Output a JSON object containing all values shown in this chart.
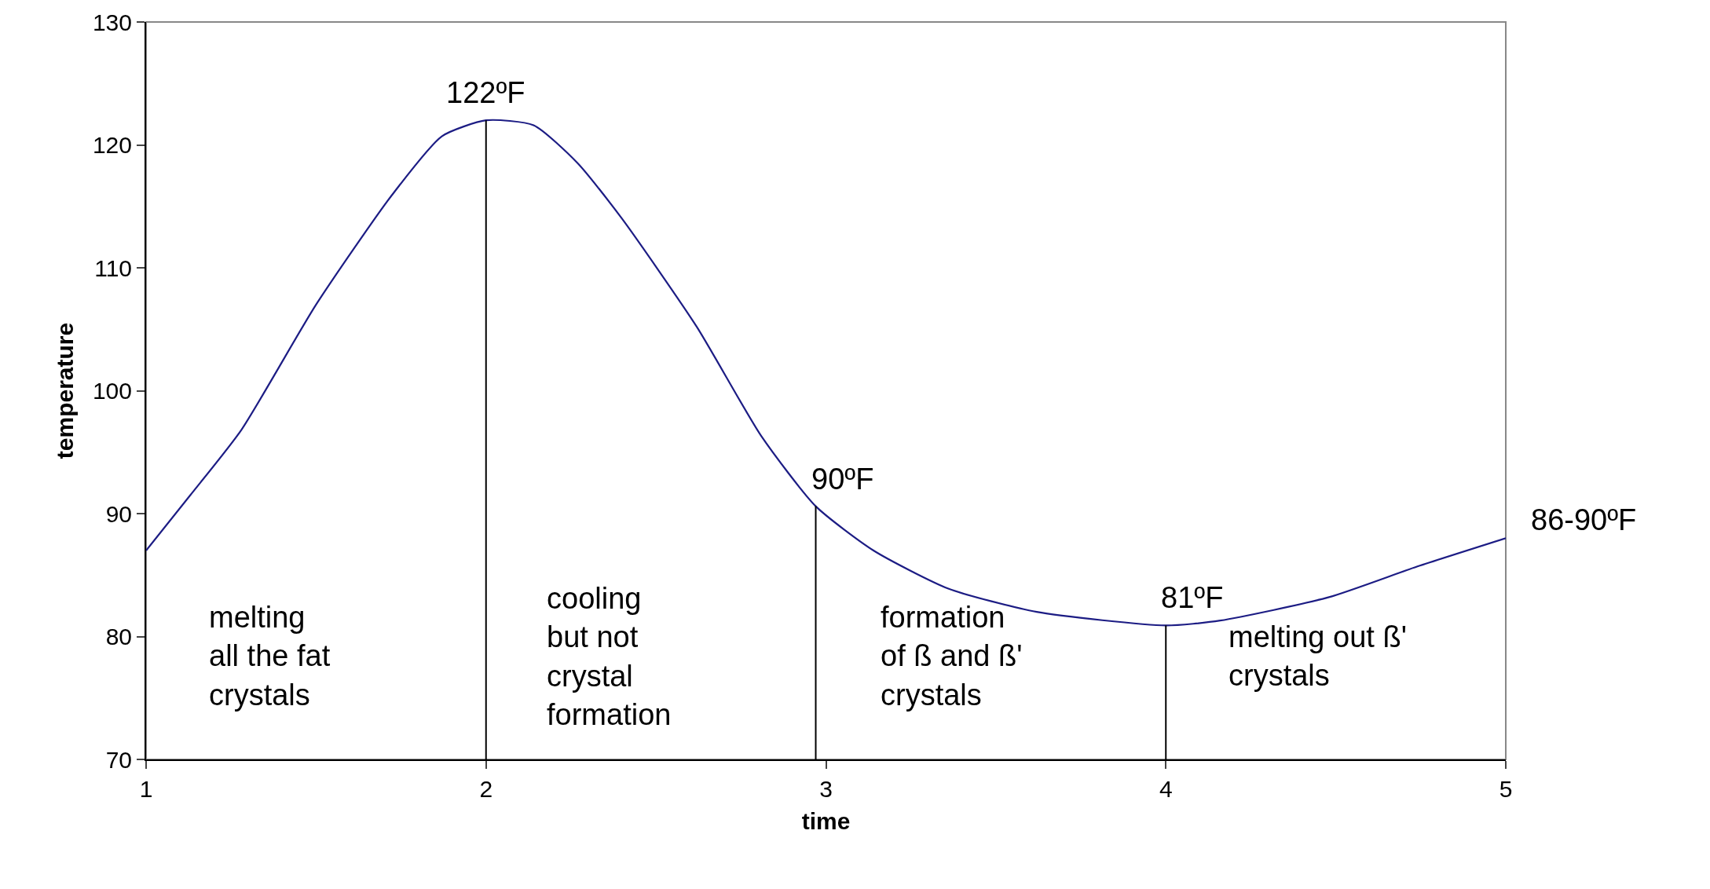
{
  "chart_data": {
    "type": "line",
    "xlabel": "time",
    "ylabel": "temperature",
    "xlim": [
      1,
      5
    ],
    "xticks": [
      1,
      2,
      3,
      4,
      5
    ],
    "ylim": [
      70,
      130
    ],
    "yticks": [
      70,
      80,
      90,
      100,
      110,
      120,
      130
    ],
    "grid": false,
    "marker": "none",
    "line_style": "solid",
    "series": [
      {
        "color": "#1c1c84",
        "x": [
          1,
          1.13,
          1.28,
          1.5,
          1.72,
          1.87,
          2.0,
          2.14,
          2.27,
          2.4,
          2.62,
          2.81,
          2.97,
          3.14,
          3.36,
          3.62,
          4.0,
          4.16,
          4.48,
          4.74,
          5
        ],
        "values": [
          87,
          91.5,
          96.8,
          107,
          115.8,
          120.7,
          122,
          121.6,
          118.5,
          114,
          105.2,
          96.3,
          90.6,
          87,
          83.9,
          82,
          80.9,
          81.3,
          83.2,
          85.7,
          88
        ]
      }
    ],
    "ref_lines": [
      {
        "axis": "x",
        "value": 2,
        "color": "#000000"
      },
      {
        "axis": "x",
        "value": 2.97,
        "color": "#000000"
      },
      {
        "axis": "x",
        "value": 4,
        "color": "#000000"
      }
    ],
    "annotations": [
      {
        "text": "122ºF",
        "x": 2,
        "y": 122
      },
      {
        "text": "90ºF",
        "x": 2.97,
        "y": 90.6
      },
      {
        "text": "81ºF",
        "x": 4.0,
        "y": 80.9
      },
      {
        "text": "86-90ºF",
        "x": 5,
        "y": 88
      },
      "melting\nall the fat\ncrystals",
      "cooling\nbut not\ncrystal\nformation",
      "formation\nof ß and ß'\ncrystals",
      "melting out ß'\ncrystals"
    ]
  }
}
